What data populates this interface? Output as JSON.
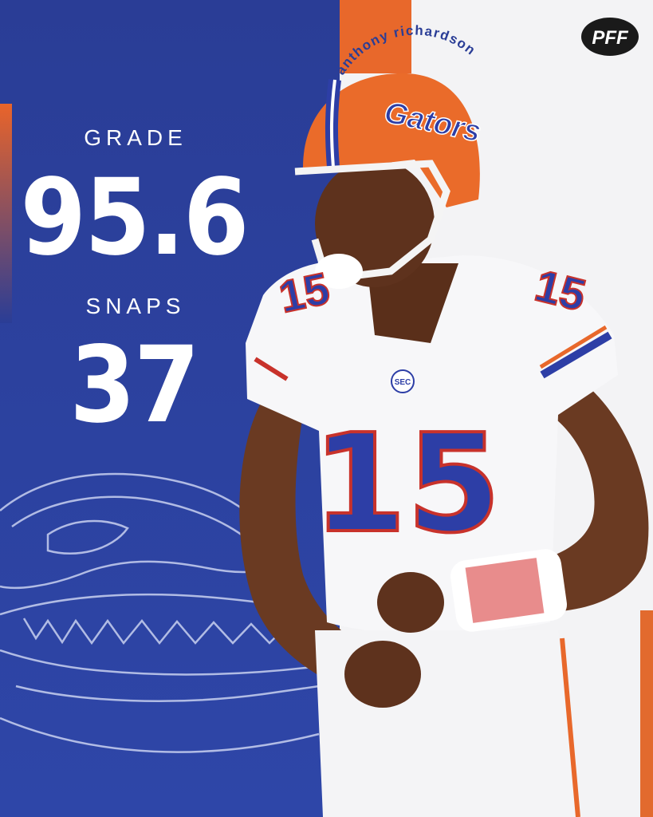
{
  "brand": "PFF",
  "player_name": "anthony richardson",
  "stats": [
    {
      "label": "GRADE",
      "value": 95.6
    },
    {
      "label": "SNAPS",
      "value": 37
    }
  ],
  "jersey_number": "15",
  "helmet_logo": "Gators",
  "conference_logo": "SEC"
}
